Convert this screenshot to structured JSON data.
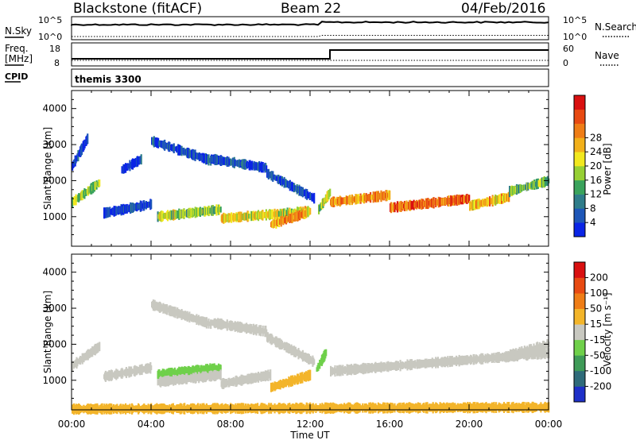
{
  "header": {
    "title": "Blackstone (fitACF)",
    "beam": "Beam 22",
    "date": "04/Feb/2016"
  },
  "summary_panels": {
    "nsky_label": "N.Sky",
    "nsky_ticks": [
      "10^5",
      "10^0"
    ],
    "nsearch_label": "N.Search",
    "freq_label_line1": "Freq.",
    "freq_label_line2": "[MHz]",
    "freq_ticks": [
      "18",
      "8"
    ],
    "nave_label": "Nave",
    "nave_ticks": [
      "60",
      "0"
    ],
    "cpid_label": "CPID",
    "cpid_value": "themis 3300"
  },
  "chart_data": [
    {
      "type": "heatmap",
      "panel": "power",
      "ylabel": "Slant Range [km]",
      "yticks": [
        1000,
        2000,
        3000,
        4000
      ],
      "ylim": [
        180,
        4500
      ],
      "xlabel": "Time UT",
      "xticks": [
        "00:00",
        "04:00",
        "08:00",
        "12:00",
        "16:00",
        "20:00",
        "00:00"
      ],
      "xlim_hours": [
        0,
        24
      ],
      "colorbar": {
        "label": "Power [dB]",
        "ticks": [
          "4",
          "8",
          "12",
          "16",
          "20",
          "24",
          "28"
        ],
        "colors": [
          "#0a25e6",
          "#1e57b8",
          "#2f7d8a",
          "#3aa35c",
          "#97d034",
          "#f2e81e",
          "#f2b01a",
          "#ef7d16",
          "#e84a12",
          "#d91010"
        ]
      },
      "bands": [
        {
          "t": [
            0.0,
            1.4
          ],
          "r": [
            1400,
            1950
          ],
          "level": 0.45
        },
        {
          "t": [
            0.0,
            0.8
          ],
          "r": [
            2400,
            3200
          ],
          "level": 0.05
        },
        {
          "t": [
            1.6,
            4.0
          ],
          "r": [
            1100,
            1350
          ],
          "level": 0.08
        },
        {
          "t": [
            2.5,
            3.5
          ],
          "r": [
            2300,
            2600
          ],
          "level": 0.05
        },
        {
          "t": [
            4.0,
            7.0
          ],
          "r": [
            3100,
            2550
          ],
          "level": 0.1
        },
        {
          "t": [
            7.0,
            9.8
          ],
          "r": [
            2600,
            2350
          ],
          "level": 0.1
        },
        {
          "t": [
            9.8,
            12.2
          ],
          "r": [
            2200,
            1500
          ],
          "level": 0.12
        },
        {
          "t": [
            4.3,
            7.5
          ],
          "r": [
            1000,
            1200
          ],
          "level": 0.45
        },
        {
          "t": [
            7.5,
            12.0
          ],
          "r": [
            950,
            1150
          ],
          "level": 0.55
        },
        {
          "t": [
            10.0,
            11.8
          ],
          "r": [
            780,
            1100
          ],
          "level": 0.7
        },
        {
          "t": [
            12.4,
            13.0
          ],
          "r": [
            1200,
            1700
          ],
          "level": 0.45
        },
        {
          "t": [
            13.0,
            16.0
          ],
          "r": [
            1400,
            1600
          ],
          "level": 0.72
        },
        {
          "t": [
            16.0,
            20.0
          ],
          "r": [
            1250,
            1500
          ],
          "level": 0.8
        },
        {
          "t": [
            20.0,
            22.0
          ],
          "r": [
            1300,
            1550
          ],
          "level": 0.65
        },
        {
          "t": [
            22.0,
            24.0
          ],
          "r": [
            1700,
            2000
          ],
          "level": 0.4
        }
      ]
    },
    {
      "type": "heatmap",
      "panel": "velocity",
      "ylabel": "Slant Range [km]",
      "yticks": [
        1000,
        2000,
        3000,
        4000
      ],
      "ylim": [
        180,
        4500
      ],
      "xlabel": "Time UT",
      "xticks": [
        "00:00",
        "04:00",
        "08:00",
        "12:00",
        "16:00",
        "20:00",
        "00:00"
      ],
      "xlim_hours": [
        0,
        24
      ],
      "colorbar": {
        "label": "Velocity [m s⁻¹]",
        "ticks": [
          "200",
          "100",
          "50",
          "15",
          "-15",
          "-50",
          "-100",
          "-200"
        ],
        "colors": [
          "#1e30c8",
          "#2f6b7a",
          "#3f9b58",
          "#6fd04a",
          "#c8c8c0",
          "#f3b52a",
          "#ef7d16",
          "#e84a12",
          "#d91010"
        ]
      },
      "bands": [
        {
          "t": [
            0.0,
            1.4
          ],
          "r": [
            1400,
            1950
          ],
          "color": "#c8c8c0"
        },
        {
          "t": [
            1.6,
            4.0
          ],
          "r": [
            1100,
            1350
          ],
          "color": "#c8c8c0"
        },
        {
          "t": [
            4.0,
            7.0
          ],
          "r": [
            3100,
            2550
          ],
          "color": "#c8c8c0"
        },
        {
          "t": [
            7.0,
            9.8
          ],
          "r": [
            2600,
            2350
          ],
          "color": "#c8c8c0"
        },
        {
          "t": [
            9.8,
            12.2
          ],
          "r": [
            2200,
            1500
          ],
          "color": "#c8c8c0"
        },
        {
          "t": [
            4.3,
            7.5
          ],
          "r": [
            1150,
            1350
          ],
          "color": "#6fd04a"
        },
        {
          "t": [
            4.3,
            7.5
          ],
          "r": [
            950,
            1150
          ],
          "color": "#c8c8c0"
        },
        {
          "t": [
            7.5,
            10.0
          ],
          "r": [
            900,
            1150
          ],
          "color": "#c8c8c0"
        },
        {
          "t": [
            10.0,
            12.0
          ],
          "r": [
            800,
            1150
          ],
          "color": "#f3b52a"
        },
        {
          "t": [
            12.3,
            12.8
          ],
          "r": [
            1300,
            1800
          ],
          "color": "#6fd04a"
        },
        {
          "t": [
            13.0,
            24.0
          ],
          "r": [
            1250,
            1750
          ],
          "color": "#c8c8c0"
        },
        {
          "t": [
            22.0,
            24.0
          ],
          "r": [
            1700,
            2000
          ],
          "color": "#c8c8c0"
        },
        {
          "t": [
            0.0,
            24.0
          ],
          "r": [
            200,
            250
          ],
          "color": "#f3b52a"
        }
      ]
    }
  ]
}
